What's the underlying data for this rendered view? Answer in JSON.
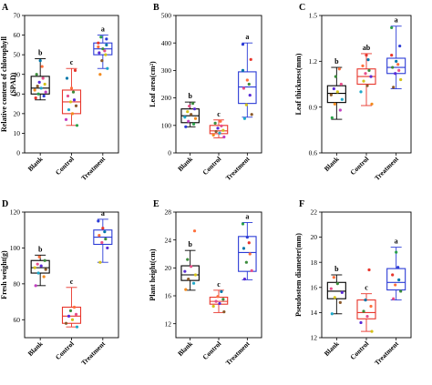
{
  "chart_data": [
    {
      "type": "box",
      "panel": "A",
      "ylabel": "Relative content of chlorophyll (SPAD)",
      "ylabel_lines": [
        "Relative content of chlorophyll",
        "(SPAD)"
      ],
      "ylim": [
        0,
        70
      ],
      "yticks": [
        0,
        10,
        20,
        30,
        40,
        50,
        60,
        70
      ],
      "categories": [
        "Blank",
        "Control",
        "Treatment"
      ],
      "box_colors": [
        "#000000",
        "#e8362c",
        "#2b3bd6"
      ],
      "boxes": [
        {
          "min": 27,
          "q1": 30,
          "median": 33,
          "q3": 39,
          "max": 48,
          "sig": "b",
          "points": [
            28,
            29,
            30,
            31,
            32,
            33,
            34,
            35,
            36,
            38,
            40,
            44,
            47
          ]
        },
        {
          "min": 14,
          "q1": 20,
          "median": 26,
          "q3": 32,
          "max": 43,
          "sig": "c",
          "points": [
            14,
            17,
            20,
            22,
            24,
            26,
            27,
            29,
            31,
            33,
            38,
            42
          ]
        },
        {
          "min": 43,
          "q1": 50,
          "median": 53,
          "q3": 56,
          "max": 60,
          "sig": "a",
          "points": [
            40,
            43,
            47,
            50,
            51,
            52,
            53,
            54,
            55,
            56,
            58,
            59
          ]
        }
      ]
    },
    {
      "type": "box",
      "panel": "B",
      "ylabel": "Leaf area(cm²)",
      "ylabel_lines": [
        "Leaf area(cm²)"
      ],
      "ylim": [
        0,
        500
      ],
      "yticks": [
        0,
        100,
        200,
        300,
        400,
        500
      ],
      "categories": [
        "Blank",
        "Control",
        "Treatment"
      ],
      "box_colors": [
        "#000000",
        "#e8362c",
        "#2b3bd6"
      ],
      "boxes": [
        {
          "min": 95,
          "q1": 110,
          "median": 135,
          "q3": 160,
          "max": 185,
          "sig": "b",
          "points": [
            95,
            105,
            115,
            125,
            130,
            140,
            150,
            160,
            170,
            180
          ]
        },
        {
          "min": 55,
          "q1": 70,
          "median": 80,
          "q3": 100,
          "max": 120,
          "sig": "c",
          "points": [
            58,
            65,
            72,
            78,
            82,
            90,
            98,
            108,
            115
          ]
        },
        {
          "min": 130,
          "q1": 180,
          "median": 240,
          "q3": 295,
          "max": 400,
          "sig": "a",
          "points": [
            125,
            140,
            175,
            210,
            235,
            250,
            265,
            300,
            340,
            395
          ]
        }
      ]
    },
    {
      "type": "box",
      "panel": "C",
      "ylabel": "Leaf thickness(mm)",
      "ylabel_lines": [
        "Leaf thickness(mm)"
      ],
      "ylim": [
        0.6,
        1.5
      ],
      "yticks": [
        0.6,
        0.9,
        1.2,
        1.5
      ],
      "categories": [
        "Blank",
        "Control",
        "Treatment"
      ],
      "box_colors": [
        "#000000",
        "#e8362c",
        "#2b3bd6"
      ],
      "boxes": [
        {
          "min": 0.82,
          "q1": 0.93,
          "median": 0.99,
          "q3": 1.04,
          "max": 1.16,
          "sig": "b",
          "points": [
            0.83,
            0.88,
            0.92,
            0.95,
            0.98,
            1.0,
            1.02,
            1.05,
            1.1,
            1.15
          ]
        },
        {
          "min": 0.91,
          "q1": 1.05,
          "median": 1.1,
          "q3": 1.15,
          "max": 1.25,
          "sig": "ab",
          "points": [
            0.92,
            1.0,
            1.04,
            1.07,
            1.1,
            1.12,
            1.14,
            1.17,
            1.21,
            1.24
          ]
        },
        {
          "min": 1.02,
          "q1": 1.12,
          "median": 1.16,
          "q3": 1.22,
          "max": 1.43,
          "sig": "a",
          "points": [
            1.03,
            1.08,
            1.12,
            1.14,
            1.16,
            1.18,
            1.2,
            1.24,
            1.3,
            1.42
          ]
        }
      ]
    },
    {
      "type": "box",
      "panel": "D",
      "ylabel": "Fresh weight(g)",
      "ylabel_lines": [
        "Fresh weight(g)"
      ],
      "ylim": [
        50,
        120
      ],
      "yticks": [
        60,
        80,
        100,
        120
      ],
      "categories": [
        "Blank",
        "Control",
        "Treatment"
      ],
      "box_colors": [
        "#000000",
        "#e8362c",
        "#2b3bd6"
      ],
      "boxes": [
        {
          "min": 79,
          "q1": 86,
          "median": 89,
          "q3": 93,
          "max": 96,
          "sig": "b",
          "points": [
            79,
            84,
            86,
            88,
            89,
            90,
            91,
            93,
            95
          ]
        },
        {
          "min": 56,
          "q1": 58,
          "median": 62,
          "q3": 67,
          "max": 78,
          "sig": "c",
          "points": [
            56,
            58,
            60,
            62,
            63,
            65,
            67
          ]
        },
        {
          "min": 92,
          "q1": 102,
          "median": 106,
          "q3": 110,
          "max": 116,
          "sig": "a",
          "points": [
            92,
            100,
            103,
            105,
            107,
            109,
            111,
            115
          ]
        }
      ]
    },
    {
      "type": "box",
      "panel": "E",
      "ylabel": "Plant height(cm)",
      "ylabel_lines": [
        "Plant height(cm)"
      ],
      "ylim": [
        10,
        28
      ],
      "yticks": [
        12,
        16,
        20,
        24,
        28
      ],
      "categories": [
        "Blank",
        "Control",
        "Treatment"
      ],
      "box_colors": [
        "#000000",
        "#e8362c",
        "#2b3bd6"
      ],
      "boxes": [
        {
          "min": 16.8,
          "q1": 18.2,
          "median": 19.0,
          "q3": 20.3,
          "max": 22.5,
          "sig": "b",
          "points": [
            16.9,
            17.8,
            18.4,
            19.0,
            19.5,
            20.2,
            21.2,
            25.3
          ]
        },
        {
          "min": 13.6,
          "q1": 14.8,
          "median": 15.2,
          "q3": 15.8,
          "max": 16.8,
          "sig": "c",
          "points": [
            13.7,
            14.5,
            14.9,
            15.2,
            15.5,
            15.9,
            16.6
          ]
        },
        {
          "min": 18.3,
          "q1": 19.5,
          "median": 22.2,
          "q3": 24.5,
          "max": 26.5,
          "sig": "a",
          "points": [
            18.4,
            19.6,
            20.8,
            22.0,
            22.8,
            23.6,
            24.4,
            26.3
          ]
        }
      ]
    },
    {
      "type": "box",
      "panel": "F",
      "ylabel": "Pseudostem diameter(mm)",
      "ylabel_lines": [
        "Pseudostem diameter(mm)"
      ],
      "ylim": [
        12,
        22
      ],
      "yticks": [
        12,
        14,
        16,
        18,
        20,
        22
      ],
      "categories": [
        "Blank",
        "Control",
        "Treatment"
      ],
      "box_colors": [
        "#000000",
        "#e8362c",
        "#2b3bd6"
      ],
      "boxes": [
        {
          "min": 13.9,
          "q1": 15.1,
          "median": 15.7,
          "q3": 16.4,
          "max": 17.0,
          "sig": "b",
          "points": [
            13.9,
            14.8,
            15.2,
            15.6,
            15.9,
            16.3,
            16.8
          ]
        },
        {
          "min": 12.5,
          "q1": 13.5,
          "median": 14.0,
          "q3": 15.0,
          "max": 15.5,
          "sig": "c",
          "points": [
            12.5,
            13.2,
            13.7,
            14.1,
            14.5,
            15.0,
            17.4
          ]
        },
        {
          "min": 15.0,
          "q1": 15.8,
          "median": 16.4,
          "q3": 17.5,
          "max": 19.2,
          "sig": "a",
          "points": [
            15.1,
            15.7,
            16.2,
            16.6,
            17.0,
            17.6,
            18.8
          ]
        }
      ]
    }
  ]
}
